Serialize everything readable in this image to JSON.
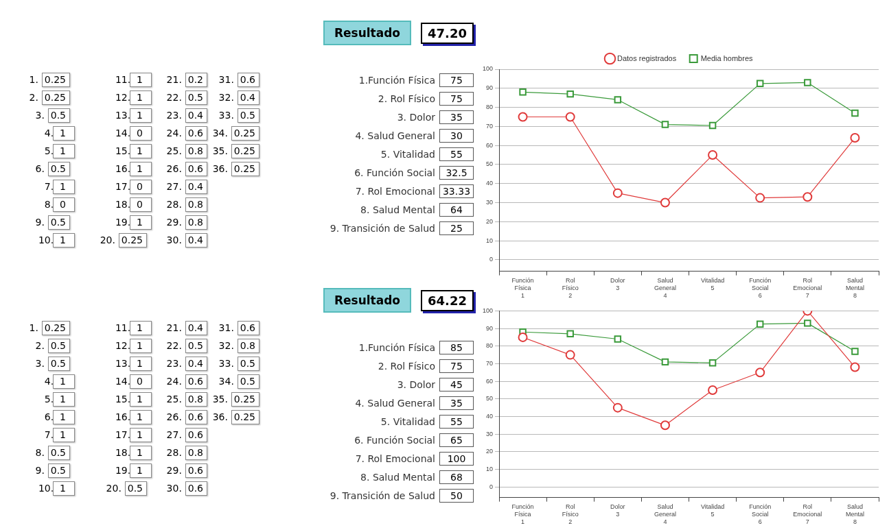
{
  "chart_data": [
    {
      "type": "other",
      "annotations": [
        "1. 0.25",
        "2. 0.25",
        "3. 0.5",
        "4. 1",
        "5. 1",
        "6. 0.5",
        "7. 1",
        "8. 0",
        "9. 0.5",
        "10. 1",
        "11. 1",
        "12. 1",
        "13. 1",
        "14. 0",
        "15. 1",
        "16. 1",
        "17. 0",
        "18. 0",
        "19. 1",
        "20. 0.25",
        "21. 0.2",
        "22. 0.5",
        "23. 0.4",
        "24. 0.6",
        "25. 0.8",
        "26. 0.6",
        "27. 0.4",
        "28. 0.8",
        "29. 0.8",
        "30. 0.4",
        "31. 0.6",
        "32. 0.4",
        "33. 0.5",
        "34. 0.25",
        "35. 0.25",
        "36. 0.25"
      ]
    },
    {
      "type": "other",
      "annotations": [
        "Resultado",
        "47.20",
        "1.Función Física",
        "75",
        "2. Rol Físico",
        "75",
        "3. Dolor",
        "35",
        "4. Salud General",
        "30",
        "5. Vitalidad",
        "55",
        "6. Función Social",
        "32.5",
        "7. Rol Emocional",
        "33.33",
        "8. Salud Mental",
        "64",
        "9. Transición de Salud",
        "25"
      ]
    },
    {
      "type": "line",
      "categories": [
        "Función Física 1",
        "Rol Físico 2",
        "Dolor 3",
        "Salud General 4",
        "Vitalidad 5",
        "Función Social 6",
        "Rol Emocional 7",
        "Salud Mental 8"
      ],
      "series": [
        {
          "name": "Datos registrados",
          "color": "#e03a3a",
          "marker": "circle",
          "values": [
            75,
            75,
            35,
            30,
            55,
            32.5,
            33,
            64
          ]
        },
        {
          "name": "Media hombres",
          "color": "#3a9a3a",
          "marker": "square",
          "values": [
            88,
            87,
            84,
            71,
            70.5,
            92.5,
            93,
            77
          ]
        }
      ],
      "ylim": [
        -6,
        100
      ],
      "yticks": [
        0,
        10,
        20,
        30,
        40,
        50,
        60,
        70,
        80,
        90,
        100
      ],
      "grid": "y",
      "legend": "top"
    },
    {
      "type": "other",
      "annotations": [
        "1. 0.25",
        "2. 0.5",
        "3. 0.5",
        "4. 1",
        "5. 1",
        "6. 1",
        "7. 1",
        "8. 0.5",
        "9. 0.5",
        "10. 1",
        "11. 1",
        "12. 1",
        "13. 1",
        "14. 0",
        "15. 1",
        "16. 1",
        "17. 1",
        "18. 1",
        "19. 1",
        "20. 0.5",
        "21. 0.4",
        "22. 0.5",
        "23. 0.4",
        "24. 0.6",
        "25. 0.8",
        "26. 0.6",
        "27. 0.6",
        "28. 0.8",
        "29. 0.6",
        "30. 0.6",
        "31. 0.6",
        "32. 0.8",
        "33. 0.5",
        "34. 0.5",
        "35. 0.25",
        "36. 0.25"
      ]
    },
    {
      "type": "other",
      "annotations": [
        "Resultado",
        "64.22",
        "1.Función Física",
        "85",
        "2. Rol Físico",
        "75",
        "3. Dolor",
        "45",
        "4. Salud General",
        "35",
        "5. Vitalidad",
        "55",
        "6. Función Social",
        "65",
        "7. Rol Emocional",
        "100",
        "8. Salud Mental",
        "68",
        "9. Transición de Salud",
        "50"
      ]
    },
    {
      "type": "line",
      "categories": [
        "Función Física 1",
        "Rol Físico 2",
        "Dolor 3",
        "Salud General 4",
        "Vitalidad 5",
        "Función Social 6",
        "Rol Emocional 7",
        "Salud Mental 8"
      ],
      "series": [
        {
          "color": "#e03a3a",
          "marker": "circle",
          "values": [
            85,
            75,
            45,
            35,
            55,
            65,
            100,
            68
          ]
        },
        {
          "color": "#3a9a3a",
          "marker": "square",
          "values": [
            88,
            87,
            84,
            71,
            70.5,
            92.5,
            93,
            77
          ]
        }
      ],
      "ylim": [
        -6,
        100
      ],
      "yticks": [
        0,
        10,
        20,
        30,
        40,
        50,
        60,
        70,
        80,
        90,
        100
      ],
      "grid": "y"
    }
  ]
}
